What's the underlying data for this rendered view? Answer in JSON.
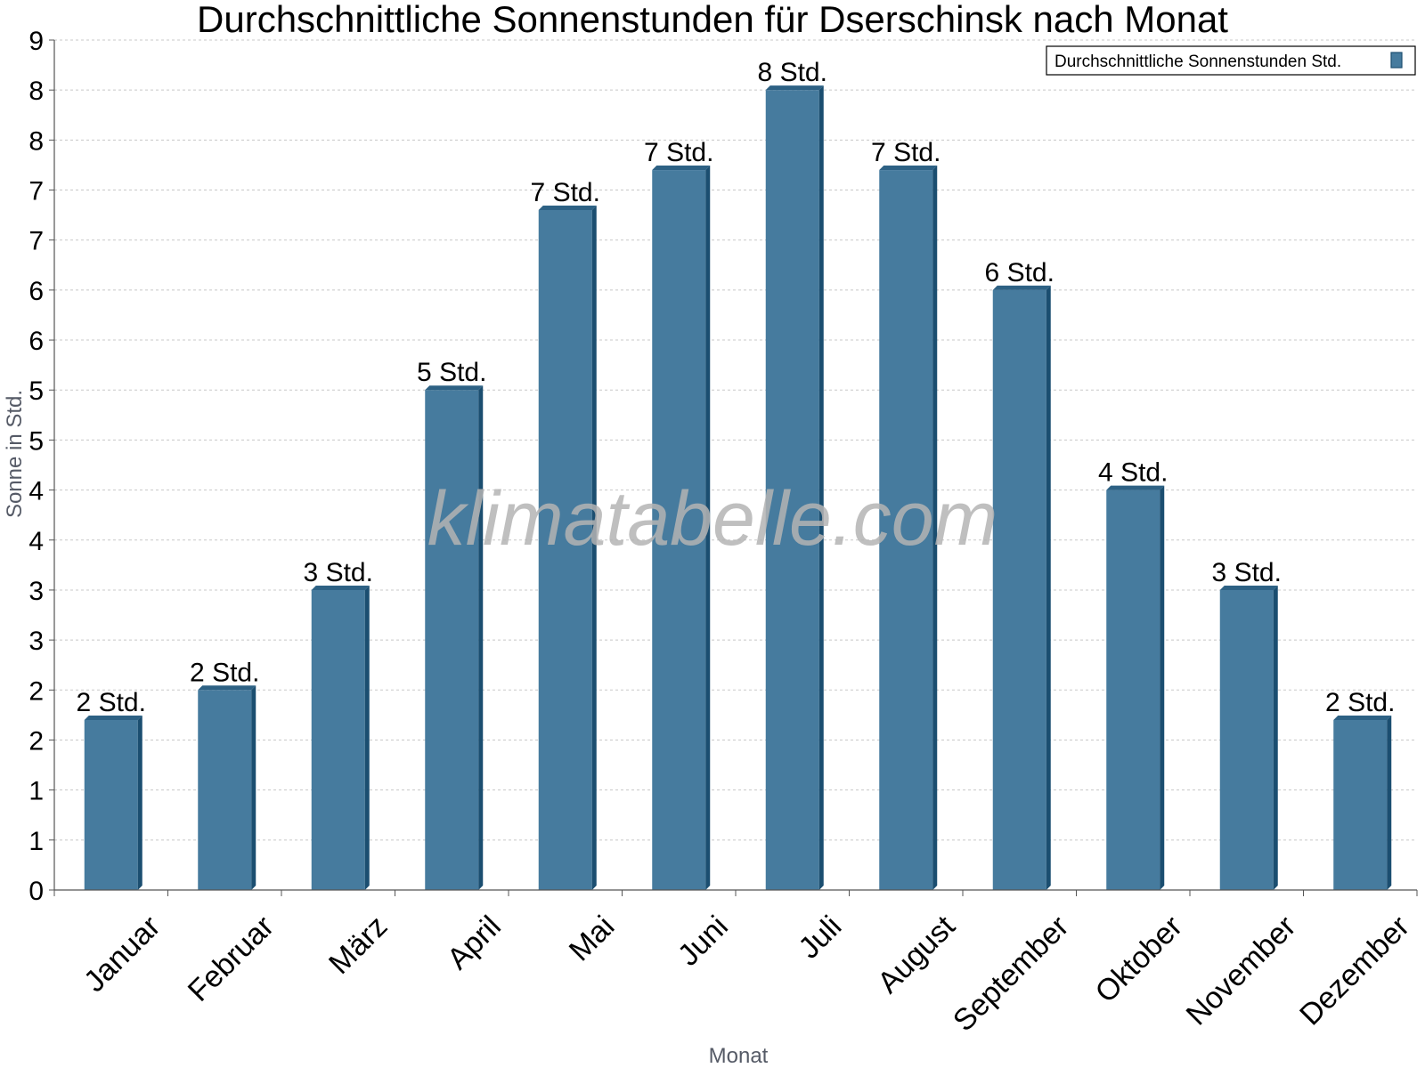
{
  "chart_data": {
    "type": "bar",
    "title": "Durchschnittliche Sonnenstunden für Dserschinsk nach Monat",
    "xlabel": "Monat",
    "ylabel": "Sonne in Std.",
    "categories": [
      "Januar",
      "Februar",
      "März",
      "April",
      "Mai",
      "Juni",
      "Juli",
      "August",
      "September",
      "Oktober",
      "November",
      "Dezember"
    ],
    "series": [
      {
        "name": "Durchschnittliche Sonnenstunden Std.",
        "values": [
          1.7,
          2.0,
          3.0,
          5.0,
          6.8,
          7.2,
          8.0,
          7.2,
          6.0,
          4.0,
          3.0,
          1.7
        ],
        "labels": [
          "2 Std.",
          "2 Std.",
          "3 Std.",
          "5 Std.",
          "7 Std.",
          "7 Std.",
          "8 Std.",
          "7 Std.",
          "6 Std.",
          "4 Std.",
          "3 Std.",
          "2 Std."
        ]
      }
    ],
    "ylim": [
      0,
      8.5
    ],
    "ytick_values": [
      0,
      0.5,
      1,
      1.5,
      2,
      2.5,
      3,
      3.5,
      4,
      4.5,
      5,
      5.5,
      6,
      6.5,
      7,
      7.5,
      8,
      8.5
    ],
    "ytick_labels": [
      "0",
      "1",
      "1",
      "2",
      "2",
      "3",
      "3",
      "4",
      "4",
      "5",
      "5",
      "6",
      "6",
      "7",
      "7",
      "8",
      "8",
      "9"
    ],
    "grid": true,
    "legend_position": "top-right",
    "watermark": "klimatabelle.com",
    "colors": {
      "bar_front": "#467b9e",
      "bar_side": "#1b4e70",
      "bar_top": "#2d6184",
      "grid": "#c8c8c8",
      "axis": "#555555"
    }
  }
}
